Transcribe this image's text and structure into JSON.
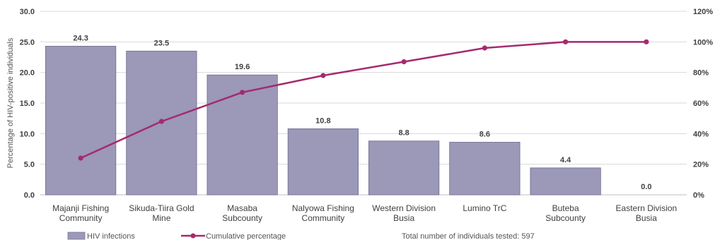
{
  "chart_data": {
    "type": "bar",
    "categories": [
      [
        "Majanji Fishing",
        "Community"
      ],
      [
        "Sikuda-Tiira Gold",
        "Mine"
      ],
      [
        "Masaba",
        "Subcounty"
      ],
      [
        "Nalyowa Fishing",
        "Community"
      ],
      [
        "Western Division",
        "Busia"
      ],
      [
        "Lumino TrC"
      ],
      [
        "Buteba",
        "Subcounty"
      ],
      [
        "Eastern Division",
        "Busia"
      ]
    ],
    "series": [
      {
        "name": "HIV infections",
        "type": "bar",
        "axis": "left",
        "values": [
          24.3,
          23.5,
          19.6,
          10.8,
          8.8,
          8.6,
          4.4,
          0.0
        ],
        "data_labels": [
          "24.3",
          "23.5",
          "19.6",
          "10.8",
          "8.8",
          "8.6",
          "4.4",
          "0.0"
        ],
        "color": "#9b98b8"
      },
      {
        "name": "Cumulative percentage",
        "type": "line",
        "axis": "right",
        "values": [
          24,
          48,
          67,
          78,
          87,
          96,
          100,
          100
        ],
        "color": "#a52a6e"
      }
    ],
    "ylabel": "Percentage of HIV-positive individuals",
    "ylim": [
      0,
      30
    ],
    "yticks": [
      "0.0",
      "5.0",
      "10.0",
      "15.0",
      "20.0",
      "25.0",
      "30.0"
    ],
    "y2lim": [
      0,
      120
    ],
    "y2ticks": [
      "0%",
      "20%",
      "40%",
      "60%",
      "80%",
      "100%",
      "120%"
    ],
    "grid": "horizontal",
    "legend_position": "bottom",
    "annotation": "Total number of individuals tested: 597"
  }
}
